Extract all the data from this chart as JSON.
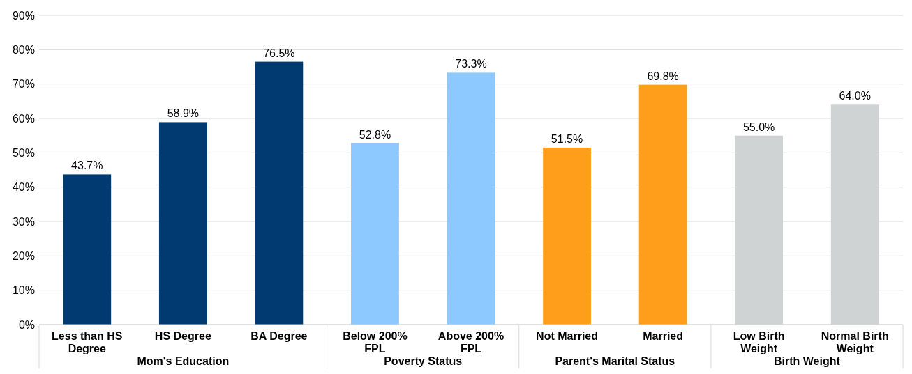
{
  "chart_data": {
    "type": "bar",
    "categories": [
      "Less than HS Degree",
      "HS Degree",
      "BA Degree",
      "Below 200% FPL",
      "Above 200% FPL",
      "Not Married",
      "Married",
      "Low Birth Weight",
      "Normal Birth Weight"
    ],
    "values": [
      43.7,
      58.9,
      76.5,
      52.8,
      73.3,
      51.5,
      69.8,
      55.0,
      64.0
    ],
    "value_labels": [
      "43.7%",
      "58.9%",
      "76.5%",
      "52.8%",
      "73.3%",
      "51.5%",
      "69.8%",
      "55.0%",
      "64.0%"
    ],
    "colors": [
      "#003a70",
      "#003a70",
      "#003a70",
      "#8dc8ff",
      "#8dc8ff",
      "#ff9e1b",
      "#ff9e1b",
      "#d0d3d4",
      "#d0d3d4"
    ],
    "annotations": [
      "Mom's Education",
      "Poverty Status",
      "Parent's Marital Status",
      "Birth Weight"
    ],
    "ylim": [
      0,
      90
    ],
    "yticks": [
      {
        "value": 0,
        "label": "0%"
      },
      {
        "value": 10,
        "label": "10%"
      },
      {
        "value": 20,
        "label": "20%"
      },
      {
        "value": 30,
        "label": "30%"
      },
      {
        "value": 40,
        "label": "40%"
      },
      {
        "value": 50,
        "label": "50%"
      },
      {
        "value": 60,
        "label": "60%"
      },
      {
        "value": 70,
        "label": "70%"
      },
      {
        "value": 80,
        "label": "80%"
      },
      {
        "value": 90,
        "label": "90%"
      }
    ],
    "grid": "y"
  }
}
